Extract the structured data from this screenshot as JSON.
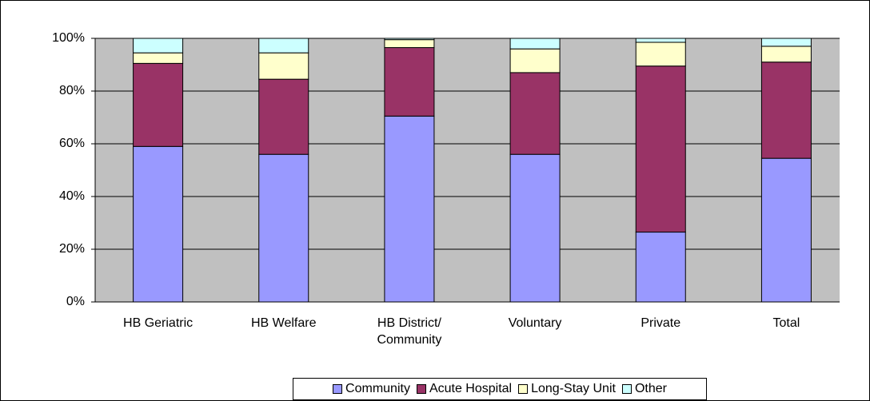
{
  "chart_data": {
    "type": "stacked_bar",
    "categories": [
      "HB Geriatric",
      "HB Welfare",
      "HB District/ Community",
      "Voluntary",
      "Private",
      "Total"
    ],
    "series": [
      {
        "name": "Community",
        "color": "#9999ff",
        "values": [
          59,
          56,
          70.5,
          56,
          26.5,
          54.5
        ]
      },
      {
        "name": "Acute Hospital",
        "color": "#993366",
        "values": [
          31.5,
          28.5,
          26,
          31,
          63,
          36.5
        ]
      },
      {
        "name": "Long-Stay Unit",
        "color": "#ffffcc",
        "values": [
          4,
          10,
          3,
          9,
          9,
          6
        ]
      },
      {
        "name": "Other",
        "color": "#ccffff",
        "values": [
          5.5,
          5.5,
          0.5,
          4,
          1.5,
          3
        ]
      }
    ],
    "ylim": [
      0,
      100
    ],
    "yticks": [
      {
        "value": 0,
        "label": "0%"
      },
      {
        "value": 20,
        "label": "20%"
      },
      {
        "value": 40,
        "label": "40%"
      },
      {
        "value": 60,
        "label": "60%"
      },
      {
        "value": 80,
        "label": "80%"
      },
      {
        "value": 100,
        "label": "100%"
      }
    ],
    "grid": true,
    "legend": "bottom"
  }
}
